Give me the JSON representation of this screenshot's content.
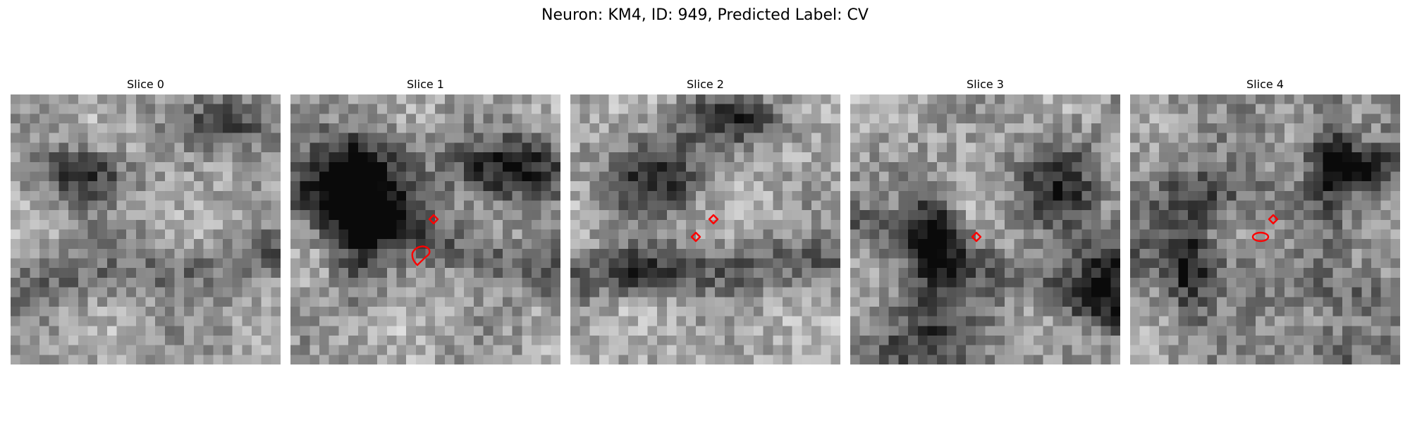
{
  "figure": {
    "title": "Neuron: KM4, ID: 949, Predicted Label: CV"
  },
  "image_grid": {
    "rows": 28,
    "cols": 28,
    "colormap": "gray"
  },
  "marker_color": "#ff0000",
  "panels": [
    {
      "title": "Slice 0",
      "seed": 11,
      "base": 0.62,
      "dark_blobs": 2
    },
    {
      "title": "Slice 1",
      "seed": 23,
      "base": 0.64,
      "dark_blobs": 4
    },
    {
      "title": "Slice 2",
      "seed": 37,
      "base": 0.66,
      "dark_blobs": 3
    },
    {
      "title": "Slice 3",
      "seed": 51,
      "base": 0.63,
      "dark_blobs": 4
    },
    {
      "title": "Slice 4",
      "seed": 67,
      "base": 0.58,
      "dark_blobs": 5
    }
  ]
}
